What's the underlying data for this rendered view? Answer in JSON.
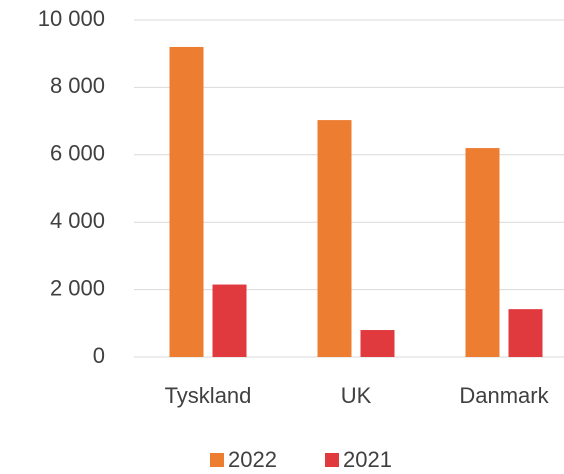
{
  "chart_data": {
    "type": "bar",
    "categories": [
      "Tyskland",
      "UK",
      "Danmark"
    ],
    "series": [
      {
        "name": "2022",
        "color": "#ed7d31",
        "values": [
          9200,
          7030,
          6200
        ]
      },
      {
        "name": "2021",
        "color": "#e0393e",
        "values": [
          2150,
          800,
          1420
        ]
      }
    ],
    "ylim": [
      0,
      10000
    ],
    "yticks": [
      0,
      {
        "value": 2000,
        "label": "2 000"
      },
      {
        "value": 4000,
        "label": "4 000"
      },
      {
        "value": 6000,
        "label": "6 000"
      },
      {
        "value": 8000,
        "label": "8 000"
      },
      {
        "value": 10000,
        "label": "10 000"
      }
    ],
    "grid": true,
    "legend": "bottom"
  }
}
